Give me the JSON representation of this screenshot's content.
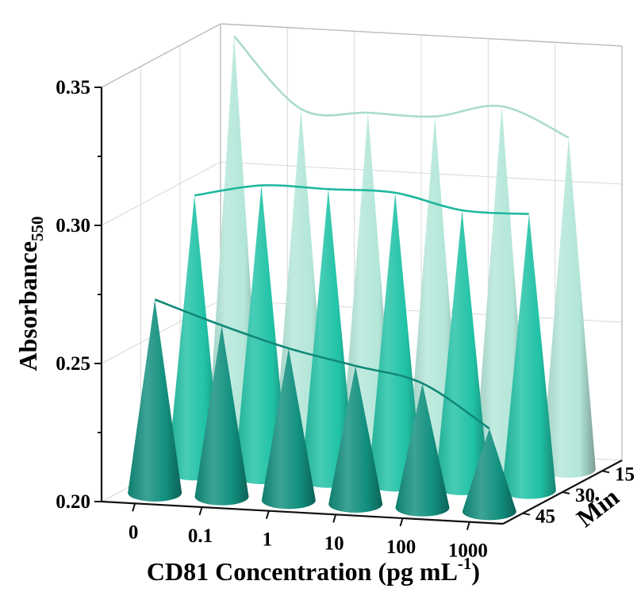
{
  "chart_data": {
    "type": "3d-bar",
    "mark": "cone",
    "categories": [
      "0",
      "0.1",
      "1",
      "10",
      "100",
      "1000"
    ],
    "series": [
      {
        "name": "15",
        "values": [
          0.35,
          0.325,
          0.325,
          0.325,
          0.33,
          0.32
        ]
      },
      {
        "name": "30",
        "values": [
          0.3,
          0.305,
          0.305,
          0.305,
          0.3,
          0.3
        ]
      },
      {
        "name": "45",
        "values": [
          0.27,
          0.262,
          0.255,
          0.25,
          0.245,
          0.23
        ]
      }
    ],
    "colors": [
      "#b3e6d9",
      "#20c2a6",
      "#118f7e"
    ],
    "xlabel": "CD81 Concentration (pg mL",
    "xlabel_sup": "-1",
    "xlabel_close": ")",
    "ylabel": "Absorbance",
    "ylabel_sub": "550",
    "zlabel": "Min",
    "yticks": [
      "0.20",
      "0.25",
      "0.30",
      "0.35"
    ],
    "ylim": [
      0.2,
      0.35
    ],
    "grid": true,
    "trend_lines": true
  }
}
